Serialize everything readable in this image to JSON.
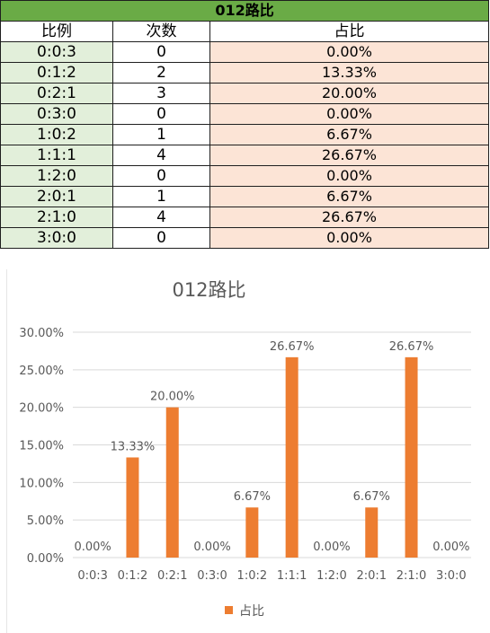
{
  "table": {
    "title": "012路比",
    "headers": [
      "比例",
      "次数",
      "占比"
    ],
    "rows": [
      {
        "ratio": "0:0:3",
        "count": "0",
        "pct": "0.00%"
      },
      {
        "ratio": "0:1:2",
        "count": "2",
        "pct": "13.33%"
      },
      {
        "ratio": "0:2:1",
        "count": "3",
        "pct": "20.00%"
      },
      {
        "ratio": "0:3:0",
        "count": "0",
        "pct": "0.00%"
      },
      {
        "ratio": "1:0:2",
        "count": "1",
        "pct": "6.67%"
      },
      {
        "ratio": "1:1:1",
        "count": "4",
        "pct": "26.67%"
      },
      {
        "ratio": "1:2:0",
        "count": "0",
        "pct": "0.00%"
      },
      {
        "ratio": "2:0:1",
        "count": "1",
        "pct": "6.67%"
      },
      {
        "ratio": "2:1:0",
        "count": "4",
        "pct": "26.67%"
      },
      {
        "ratio": "3:0:0",
        "count": "0",
        "pct": "0.00%"
      }
    ]
  },
  "colors": {
    "title_bg": "#6aab46",
    "ratio_bg": "#e2efda",
    "pct_bg": "#fce4d6",
    "bar": "#ed7d31",
    "gridline": "#d9d9d9",
    "chart_text": "#595959"
  },
  "chart_data": {
    "type": "bar",
    "title": "012路比",
    "categories": [
      "0:0:3",
      "0:1:2",
      "0:2:1",
      "0:3:0",
      "1:0:2",
      "1:1:1",
      "1:2:0",
      "2:0:1",
      "2:1:0",
      "3:0:0"
    ],
    "series": [
      {
        "name": "占比",
        "values": [
          0.0,
          13.33,
          20.0,
          0.0,
          6.67,
          26.67,
          0.0,
          6.67,
          26.67,
          0.0
        ]
      }
    ],
    "data_labels": [
      "0.00%",
      "13.33%",
      "20.00%",
      "0.00%",
      "6.67%",
      "26.67%",
      "0.00%",
      "6.67%",
      "26.67%",
      "0.00%"
    ],
    "yticks": [
      "0.00%",
      "5.00%",
      "10.00%",
      "15.00%",
      "20.00%",
      "25.00%",
      "30.00%"
    ],
    "ylim": [
      0,
      30
    ],
    "grid": true,
    "legend_position": "bottom"
  }
}
